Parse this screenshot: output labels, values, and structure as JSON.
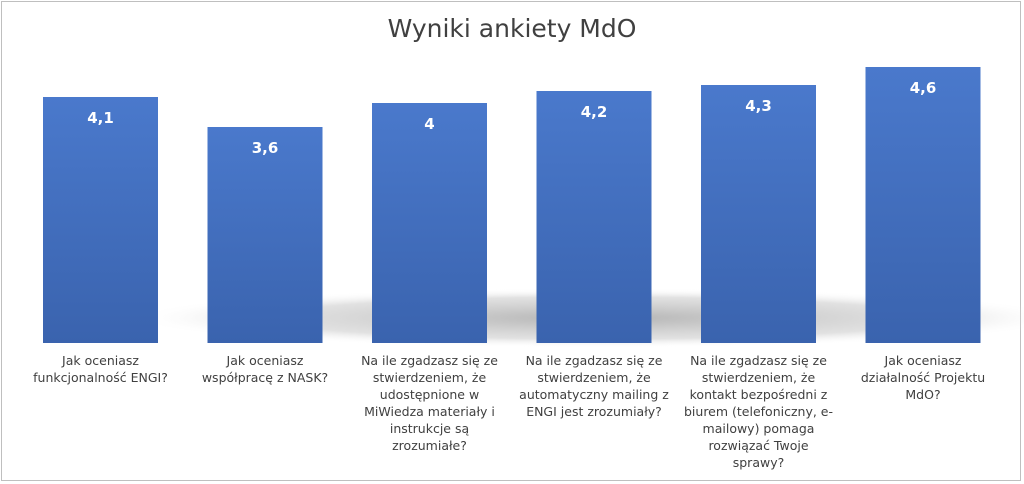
{
  "chart_data": {
    "type": "bar",
    "title": "Wyniki ankiety MdO",
    "categories": [
      "Jak oceniasz funkcjonalność ENGI?",
      "Jak oceniasz współpracę z NASK?",
      "Na ile zgadzasz się ze stwierdzeniem, że udostępnione w MiWiedza materiały i instrukcje są zrozumiałe?",
      "Na ile zgadzasz się ze stwierdzeniem, że automatyczny mailing z ENGI jest zrozumiały?",
      "Na ile zgadzasz się ze stwierdzeniem, że kontakt bezpośredni z biurem (telefoniczny, e-mailowy) pomaga rozwiązać Twoje sprawy?",
      "Jak oceniasz działalność Projektu MdO?"
    ],
    "values": [
      4.1,
      3.6,
      4.0,
      4.2,
      4.3,
      4.6
    ],
    "data_labels": [
      "4,1",
      "3,6",
      "4",
      "4,2",
      "4,3",
      "4,6"
    ],
    "xlabel": "",
    "ylabel": "",
    "ylim": [
      0,
      5.0
    ],
    "grid": false,
    "legend": "none",
    "bar_color": "#4472c4"
  }
}
